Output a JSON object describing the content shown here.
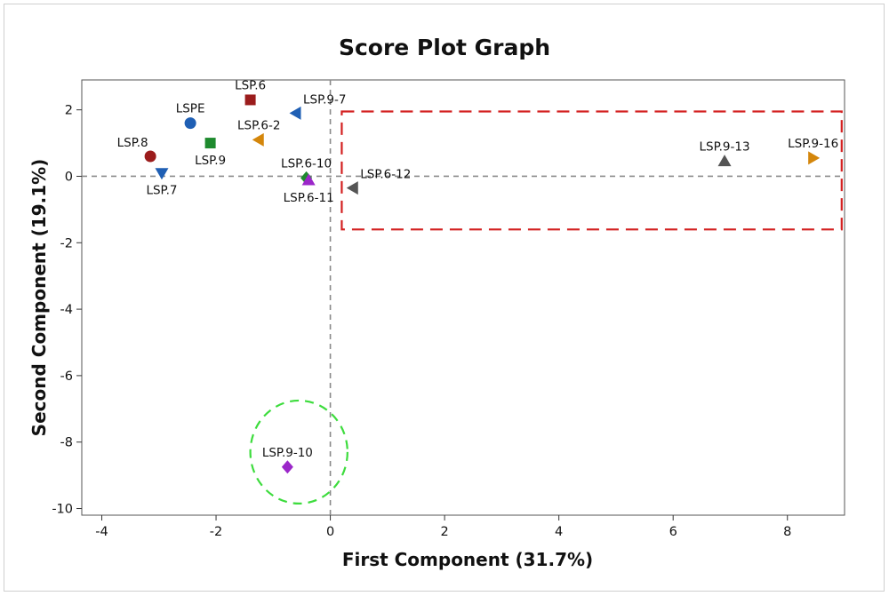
{
  "chart_data": {
    "type": "scatter",
    "title": "Score Plot Graph",
    "xlabel": "First Component (31.7%)",
    "ylabel": "Second Component (19.1%)",
    "xlim": [
      -4.35,
      9.0
    ],
    "ylim": [
      -10.2,
      2.9
    ],
    "xticks": [
      -4,
      -2,
      0,
      2,
      4,
      6,
      8
    ],
    "yticks": [
      2,
      0,
      -2,
      -4,
      -6,
      -8,
      -10
    ],
    "reference_lines": {
      "x": 0,
      "y": 0,
      "style": "dashed",
      "color": "#8a8a8a"
    },
    "grid": false,
    "points": [
      {
        "label": "LSP.6",
        "x": -1.4,
        "y": 2.3,
        "marker": "square",
        "color": "#9b1c1c",
        "label_pos": "above"
      },
      {
        "label": "LSP.9-7",
        "x": -0.6,
        "y": 1.9,
        "marker": "triangle-left",
        "color": "#1f5fb4",
        "label_pos": "above-right"
      },
      {
        "label": "LSPE",
        "x": -2.45,
        "y": 1.6,
        "marker": "circle",
        "color": "#1f5fb4",
        "label_pos": "above"
      },
      {
        "label": "LSP.6-2",
        "x": -1.25,
        "y": 1.1,
        "marker": "triangle-left",
        "color": "#d4860b",
        "label_pos": "above"
      },
      {
        "label": "LSP.9",
        "x": -2.1,
        "y": 1.0,
        "marker": "square",
        "color": "#1e8a2e",
        "label_pos": "below"
      },
      {
        "label": "LSP.8",
        "x": -3.15,
        "y": 0.6,
        "marker": "circle",
        "color": "#9b1c1c",
        "label_pos": "above-left"
      },
      {
        "label": "LSP.7",
        "x": -2.95,
        "y": 0.1,
        "marker": "triangle-down",
        "color": "#1f5fb4",
        "label_pos": "below"
      },
      {
        "label": "LSP.6-10",
        "x": -0.42,
        "y": -0.05,
        "marker": "diamond",
        "color": "#1e8a2e",
        "label_pos": "above"
      },
      {
        "label": "LSP.6-11",
        "x": -0.38,
        "y": -0.12,
        "marker": "triangle-up",
        "color": "#9b27c9",
        "label_pos": "below"
      },
      {
        "label": "LSP.6-12",
        "x": 0.4,
        "y": -0.35,
        "marker": "triangle-left",
        "color": "#555555",
        "label_pos": "above-right"
      },
      {
        "label": "LSP.9-13",
        "x": 6.9,
        "y": 0.45,
        "marker": "triangle-up",
        "color": "#555555",
        "label_pos": "above"
      },
      {
        "label": "LSP.9-16",
        "x": 8.45,
        "y": 0.55,
        "marker": "triangle-right",
        "color": "#d4860b",
        "label_pos": "above"
      },
      {
        "label": "LSP.9-10",
        "x": -0.75,
        "y": -8.75,
        "marker": "diamond",
        "color": "#9b27c9",
        "label_pos": "above"
      }
    ],
    "annotations": [
      {
        "shape": "rectangle",
        "style": "dashed",
        "color": "#d32020",
        "x_range": [
          0.2,
          8.95
        ],
        "y_range": [
          -1.6,
          1.95
        ]
      },
      {
        "shape": "ellipse",
        "style": "dashed",
        "color": "#3ddc3d",
        "center": [
          -0.55,
          -8.3
        ],
        "radius_x": 0.85,
        "radius_y": 1.55
      }
    ]
  }
}
